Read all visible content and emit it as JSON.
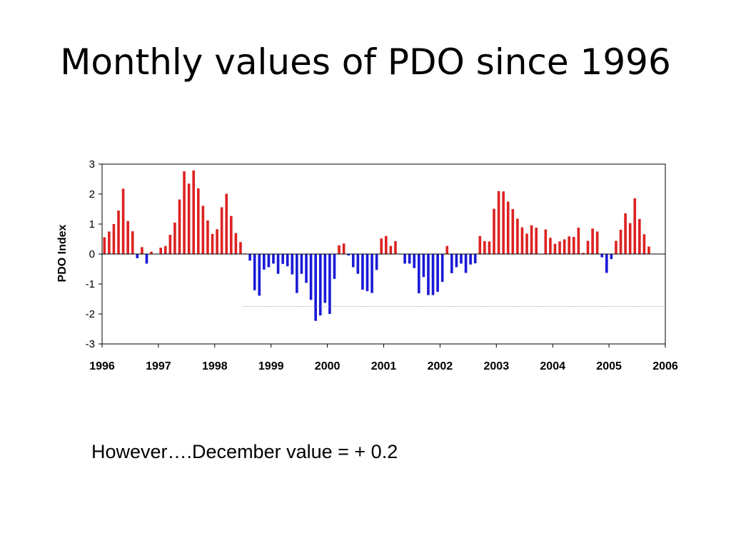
{
  "slide": {
    "title": "Monthly values of PDO since 1996",
    "footnote": "However….December value = + 0.2"
  },
  "colors": {
    "positive": "#dd2222",
    "negative": "#1a1ad8",
    "axis": "#000000",
    "reference_line": "#888888"
  },
  "chart_data": {
    "type": "bar",
    "title": "",
    "xlabel": "",
    "ylabel": "PDO Index",
    "ylim": [
      -3,
      3
    ],
    "xlim": [
      1996,
      2006
    ],
    "yticks": [
      3,
      2,
      1,
      0,
      -1,
      -2,
      -3
    ],
    "xticks": [
      1996,
      1997,
      1998,
      1999,
      2000,
      2001,
      2002,
      2003,
      2004,
      2005,
      2006
    ],
    "grid": false,
    "legend": "none",
    "reference_line": {
      "y": -1.75,
      "x_start": 1998.5,
      "x_end": 2006,
      "style": "dotted"
    },
    "start_year": 1996,
    "start_month": 1,
    "values": [
      0.56,
      0.75,
      1.0,
      1.45,
      2.18,
      1.1,
      0.76,
      -0.14,
      0.23,
      -0.32,
      0.08,
      0.0,
      0.21,
      0.27,
      0.64,
      1.05,
      1.82,
      2.76,
      2.35,
      2.79,
      2.19,
      1.61,
      1.12,
      0.67,
      0.83,
      1.56,
      2.01,
      1.27,
      0.7,
      0.4,
      0.02,
      -0.22,
      -1.21,
      -1.39,
      -0.52,
      -0.44,
      -0.32,
      -0.66,
      -0.33,
      -0.41,
      -0.68,
      -1.3,
      -0.66,
      -0.96,
      -1.53,
      -2.23,
      -2.05,
      -1.63,
      -2.0,
      -0.83,
      0.29,
      0.35,
      -0.05,
      -0.44,
      -0.66,
      -1.19,
      -1.24,
      -1.3,
      -0.53,
      0.52,
      0.6,
      0.27,
      0.43,
      0.0,
      -0.32,
      -0.32,
      -0.47,
      -1.31,
      -0.77,
      -1.37,
      -1.37,
      -1.26,
      -0.93,
      0.27,
      -0.64,
      -0.44,
      -0.32,
      -0.63,
      -0.35,
      -0.31,
      0.6,
      0.43,
      0.42,
      1.51,
      2.1,
      2.09,
      1.75,
      1.5,
      1.18,
      0.89,
      0.68,
      0.96,
      0.88,
      0.01,
      0.82,
      0.54,
      0.34,
      0.42,
      0.49,
      0.59,
      0.57,
      0.88,
      0.04,
      0.44,
      0.85,
      0.75,
      -0.11,
      -0.63,
      -0.17,
      0.44,
      0.81,
      1.36,
      1.03,
      1.86,
      1.17,
      0.66,
      0.25,
      0.0,
      0.0,
      0.0
    ],
    "series": [
      {
        "values_ref": "values",
        "color_rule": "red if >= 0, blue if < 0"
      }
    ]
  }
}
